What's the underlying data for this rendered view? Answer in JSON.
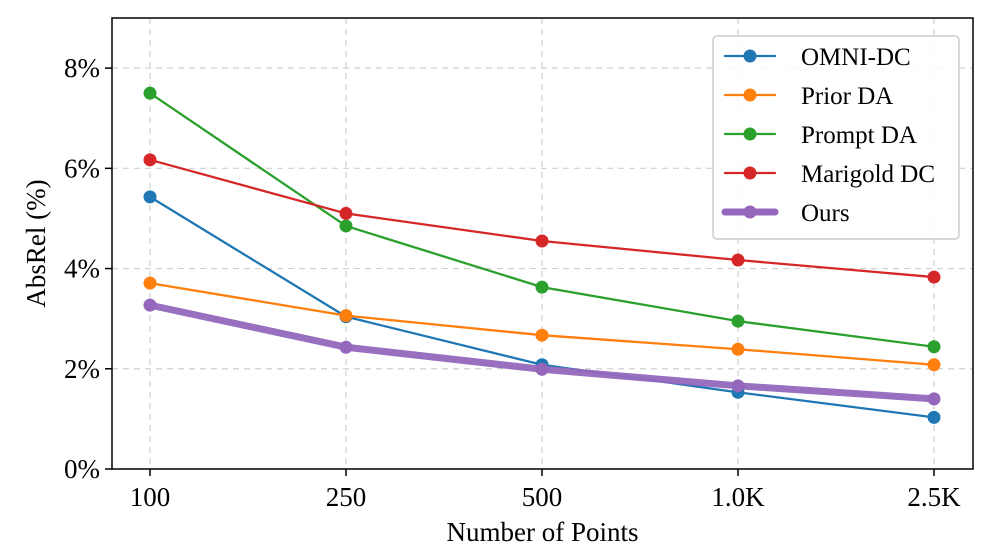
{
  "chart_data": {
    "type": "line",
    "title": "",
    "xlabel": "Number of Points",
    "ylabel": "AbsRel (%)",
    "categories": [
      "100",
      "250",
      "500",
      "1.0K",
      "2.5K"
    ],
    "ylim": [
      0,
      9
    ],
    "yticks": [
      0,
      2,
      4,
      6,
      8
    ],
    "ytick_labels": [
      "0%",
      "2%",
      "4%",
      "6%",
      "8%"
    ],
    "grid": true,
    "legend_position": "top-right",
    "series": [
      {
        "name": "OMNI-DC",
        "color": "#1f77b4",
        "values": [
          5.43,
          3.04,
          2.08,
          1.53,
          1.03
        ],
        "width": "normal"
      },
      {
        "name": "Prior DA",
        "color": "#ff7f0e",
        "values": [
          3.71,
          3.06,
          2.67,
          2.39,
          2.08
        ],
        "width": "normal"
      },
      {
        "name": "Prompt DA",
        "color": "#2ca02c",
        "values": [
          7.5,
          4.85,
          3.63,
          2.95,
          2.44
        ],
        "width": "normal"
      },
      {
        "name": "Marigold DC",
        "color": "#d62728",
        "values": [
          6.17,
          5.1,
          4.55,
          4.17,
          3.83
        ],
        "width": "normal"
      },
      {
        "name": "Ours",
        "color": "#9467bd",
        "values": [
          3.27,
          2.43,
          1.99,
          1.66,
          1.4
        ],
        "width": "bold"
      }
    ]
  }
}
